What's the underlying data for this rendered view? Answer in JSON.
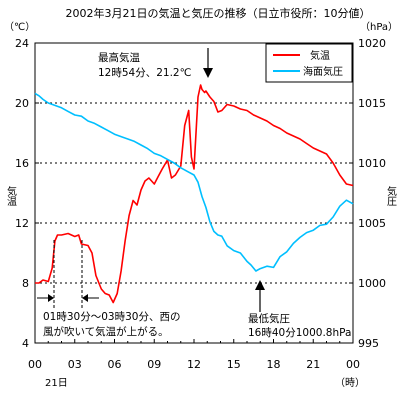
{
  "chart_data": {
    "type": "line",
    "title": "2002年3月21日の気温と気圧の推移（日立市役所：10分値）",
    "left_unit": "（℃）",
    "right_unit": "（hPa）",
    "ylabel_left": "気温",
    "ylabel_right": "気圧",
    "x_ticks": [
      "00",
      "03",
      "06",
      "09",
      "12",
      "15",
      "18",
      "21",
      "00"
    ],
    "x_date_label": "21日",
    "x_unit_label": "（時）",
    "xlim": [
      0,
      24
    ],
    "ylim_left": [
      4,
      24
    ],
    "ylim_right": [
      995,
      1020
    ],
    "y_ticks_left": [
      "4",
      "8",
      "12",
      "16",
      "20",
      "24"
    ],
    "y_ticks_right": [
      "995",
      "1000",
      "1005",
      "1010",
      "1015",
      "1020"
    ],
    "grid": "horizontal dashed",
    "legend_position": "top-right",
    "series": [
      {
        "name": "気温",
        "axis": "left",
        "color": "#ff0000",
        "x": [
          0,
          0.3,
          0.6,
          1.0,
          1.3,
          1.5,
          1.7,
          2.0,
          2.5,
          3.0,
          3.3,
          3.5,
          4.0,
          4.3,
          4.6,
          5.0,
          5.3,
          5.6,
          5.9,
          6.2,
          6.5,
          6.8,
          7.1,
          7.4,
          7.7,
          8.0,
          8.3,
          8.6,
          9.0,
          9.3,
          9.6,
          10.0,
          10.3,
          10.6,
          11.0,
          11.3,
          11.6,
          11.8,
          12.0,
          12.3,
          12.5,
          12.6,
          12.7,
          12.8,
          12.9,
          13.2,
          13.5,
          13.8,
          14.1,
          14.5,
          15.0,
          15.5,
          16.0,
          16.5,
          17.0,
          17.5,
          18.0,
          18.5,
          19.0,
          19.5,
          20.0,
          20.5,
          21.0,
          21.5,
          22.0,
          22.5,
          23.0,
          23.5,
          24.0
        ],
        "y": [
          8.0,
          8.0,
          8.2,
          8.1,
          9.0,
          10.8,
          11.2,
          11.2,
          11.3,
          11.1,
          11.2,
          10.6,
          10.5,
          10.0,
          8.5,
          7.6,
          7.3,
          7.2,
          6.7,
          7.3,
          8.8,
          10.8,
          12.5,
          13.5,
          13.2,
          14.2,
          14.8,
          15.0,
          14.6,
          15.1,
          15.6,
          16.2,
          15.0,
          15.2,
          15.8,
          18.5,
          19.5,
          16.4,
          15.6,
          20.4,
          21.2,
          20.9,
          20.8,
          20.7,
          20.8,
          20.4,
          20.1,
          19.4,
          19.5,
          19.9,
          19.8,
          19.6,
          19.5,
          19.2,
          19.0,
          18.8,
          18.5,
          18.3,
          18.0,
          17.8,
          17.6,
          17.3,
          17.0,
          16.8,
          16.6,
          16.0,
          15.2,
          14.6,
          14.5
        ]
      },
      {
        "name": "海面気圧",
        "axis": "right",
        "color": "#00bfff",
        "x": [
          0,
          0.3,
          0.6,
          1.0,
          1.5,
          2.0,
          2.5,
          3.0,
          3.5,
          4.0,
          4.5,
          5.0,
          5.5,
          6.0,
          6.5,
          7.0,
          7.5,
          8.0,
          8.5,
          9.0,
          9.5,
          10.0,
          10.5,
          11.0,
          11.5,
          12.0,
          12.3,
          12.6,
          12.9,
          13.2,
          13.5,
          13.8,
          14.1,
          14.5,
          15.0,
          15.5,
          16.0,
          16.3,
          16.67,
          17.0,
          17.5,
          18.0,
          18.5,
          19.0,
          19.5,
          20.0,
          20.5,
          21.0,
          21.5,
          22.0,
          22.5,
          23.0,
          23.5,
          24.0
        ],
        "y": [
          1015.8,
          1015.6,
          1015.3,
          1015.0,
          1014.8,
          1014.6,
          1014.3,
          1014.0,
          1013.9,
          1013.5,
          1013.3,
          1013.0,
          1012.7,
          1012.4,
          1012.2,
          1012.0,
          1011.8,
          1011.5,
          1011.2,
          1010.8,
          1010.6,
          1010.3,
          1010.0,
          1009.6,
          1009.3,
          1009.0,
          1008.4,
          1007.2,
          1006.3,
          1005.1,
          1004.3,
          1004.0,
          1003.9,
          1003.1,
          1002.7,
          1002.5,
          1001.8,
          1001.5,
          1001.0,
          1001.2,
          1001.4,
          1001.3,
          1002.2,
          1002.6,
          1003.3,
          1003.8,
          1004.2,
          1004.4,
          1004.8,
          1004.9,
          1005.5,
          1006.4,
          1006.9,
          1006.6
        ]
      }
    ],
    "annotations": {
      "max_line1": "最高気温",
      "max_line2": "12時54分、21.2℃",
      "min_line1": "最低気圧",
      "min_line2": "16時40分1000.8hPa",
      "note_line1": "01時30分～03時30分、西の",
      "note_line2": "風が吹いて気温が上がる。"
    }
  }
}
